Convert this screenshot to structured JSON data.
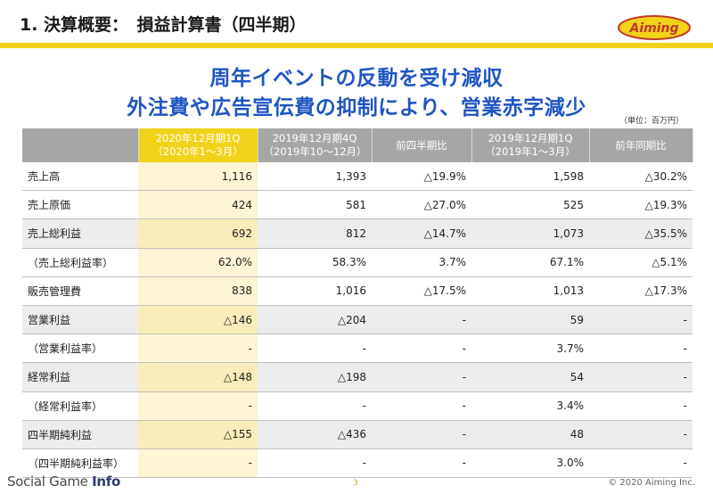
{
  "header": {
    "title": "1. 決算概要：　損益計算書（四半期）",
    "logo_text": "Aiming",
    "accent_color": "#f2d21a"
  },
  "headline": {
    "line1": "周年イベントの反動を受け減収",
    "line2": "外注費や広告宣伝費の抑制により、営業赤字減少",
    "color": "#1f55c2"
  },
  "unit_note": "（単位：百万円）",
  "table": {
    "columns": [
      {
        "line1": "",
        "line2": ""
      },
      {
        "line1": "2020年12月期1Q",
        "line2": "（2020年1～3月）"
      },
      {
        "line1": "2019年12月期4Q",
        "line2": "（2019年10～12月）"
      },
      {
        "line1": "前四半期比",
        "line2": ""
      },
      {
        "line1": "2019年12月期1Q",
        "line2": "（2019年1～3月）"
      },
      {
        "line1": "前年同期比",
        "line2": ""
      }
    ],
    "rows": [
      {
        "label": "売上高",
        "c1": "1,116",
        "c2": "1,393",
        "c3": "△19.9%",
        "c4": "1,598",
        "c5": "△30.2%"
      },
      {
        "label": "売上原価",
        "c1": "424",
        "c2": "581",
        "c3": "△27.0%",
        "c4": "525",
        "c5": "△19.3%"
      },
      {
        "label": "売上総利益",
        "c1": "692",
        "c2": "812",
        "c3": "△14.7%",
        "c4": "1,073",
        "c5": "△35.5%"
      },
      {
        "label": "（売上総利益率）",
        "c1": "62.0%",
        "c2": "58.3%",
        "c3": "3.7%",
        "c4": "67.1%",
        "c5": "△5.1%"
      },
      {
        "label": "販売管理費",
        "c1": "838",
        "c2": "1,016",
        "c3": "△17.5%",
        "c4": "1,013",
        "c5": "△17.3%"
      },
      {
        "label": "営業利益",
        "c1": "△146",
        "c2": "△204",
        "c3": "-",
        "c4": "59",
        "c5": "-"
      },
      {
        "label": "（営業利益率）",
        "c1": "-",
        "c2": "-",
        "c3": "-",
        "c4": "3.7%",
        "c5": "-"
      },
      {
        "label": "経常利益",
        "c1": "△148",
        "c2": "△198",
        "c3": "-",
        "c4": "54",
        "c5": "-"
      },
      {
        "label": "（経常利益率）",
        "c1": "-",
        "c2": "-",
        "c3": "-",
        "c4": "3.4%",
        "c5": "-"
      },
      {
        "label": "四半期純利益",
        "c1": "△155",
        "c2": "△436",
        "c3": "-",
        "c4": "48",
        "c5": "-"
      },
      {
        "label": "（四半期純利益率）",
        "c1": "-",
        "c2": "-",
        "c3": "-",
        "c4": "3.0%",
        "c5": "-"
      }
    ]
  },
  "footer": {
    "brand_plain": "Social Game ",
    "brand_bold": "Info",
    "page_number": "3",
    "copyright": "© 2020 Aiming Inc."
  }
}
